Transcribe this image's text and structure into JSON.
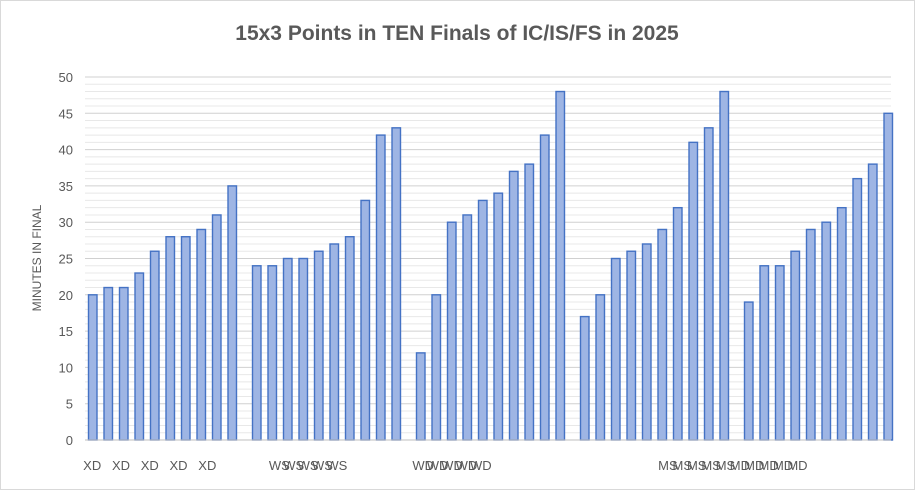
{
  "chart_data": {
    "type": "bar",
    "title": "15x3 Points in TEN Finals of IC/IS/FS in 2025",
    "xlabel": "",
    "ylabel": "MINUTES IN FINAL",
    "ylim": [
      0,
      50
    ],
    "yticks": [
      0,
      5,
      10,
      15,
      20,
      25,
      30,
      35,
      40,
      45,
      50
    ],
    "grid": true,
    "legend": "none",
    "bar_color": "#9EB5E4",
    "bar_edge_color": "#4472C4",
    "groups": [
      {
        "label": "XD",
        "values": [
          20,
          21,
          21,
          23,
          26,
          28,
          28,
          29,
          31,
          35
        ]
      },
      {
        "label": "WS",
        "values": [
          24,
          24,
          25,
          25,
          26,
          27,
          28,
          33,
          42,
          43
        ]
      },
      {
        "label": "WD",
        "values": [
          12,
          20,
          30,
          31,
          33,
          34,
          37,
          38,
          42,
          48
        ]
      },
      {
        "label": "MS",
        "values": [
          17,
          20,
          25,
          26,
          27,
          29,
          32,
          41,
          43,
          48
        ]
      },
      {
        "label": "MD",
        "values": [
          19,
          24,
          24,
          26,
          29,
          30,
          32,
          36,
          38,
          45
        ]
      }
    ],
    "categories": [
      "XD",
      "",
      "XD",
      "",
      "XD",
      "",
      "XD",
      "",
      "XD",
      "",
      "",
      "",
      "",
      "WS",
      "WS",
      "WS",
      "WS",
      "WS",
      "",
      "",
      "",
      "",
      "",
      "WD",
      "WD",
      "WD",
      "WD",
      "WD",
      "",
      "",
      "",
      "",
      "",
      "",
      "",
      "",
      "",
      "",
      "",
      "",
      "MS",
      "MS",
      "MS",
      "MS",
      "MS",
      "MD",
      "MD",
      "MD",
      "MD",
      "MD",
      "",
      "",
      "",
      "",
      "",
      ""
    ]
  }
}
